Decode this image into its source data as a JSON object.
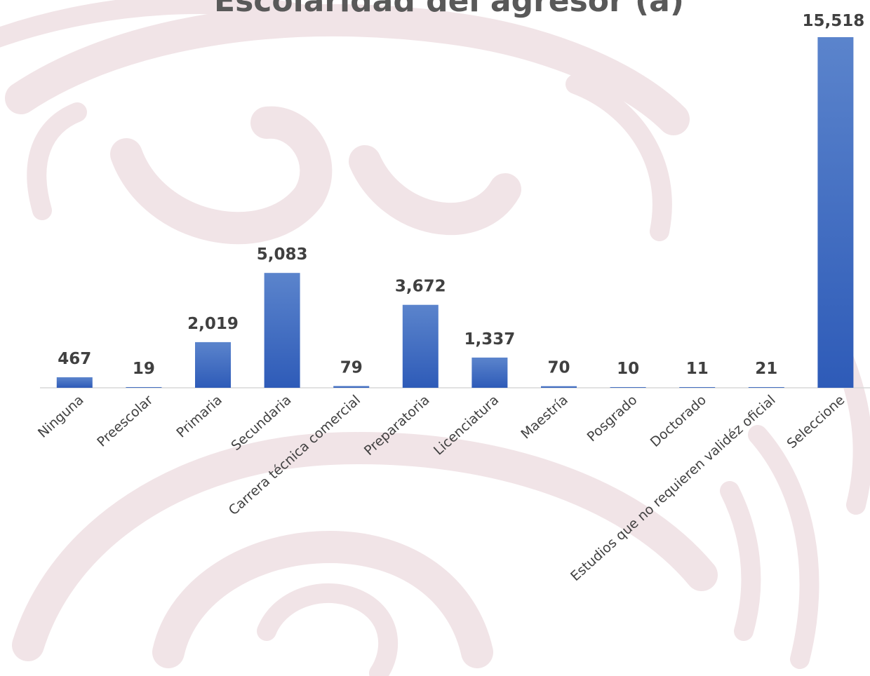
{
  "chart_data": {
    "type": "bar",
    "title": "Escolaridad del agresor (a)",
    "categories": [
      "Ninguna",
      "Preescolar",
      "Primaria",
      "Secundaria",
      "Carrera técnica comercial",
      "Preparatoria",
      "Licenciatura",
      "Maestría",
      "Posgrado",
      "Doctorado",
      "Estudios que no requieren validéz oficial",
      "Seleccione"
    ],
    "values": [
      467,
      19,
      2019,
      5083,
      79,
      3672,
      1337,
      70,
      10,
      11,
      21,
      15518
    ],
    "value_labels": [
      "467",
      "19",
      "2,019",
      "5,083",
      "79",
      "3,672",
      "1,337",
      "70",
      "10",
      "11",
      "21",
      "15,518"
    ],
    "ylim": [
      0,
      15518
    ],
    "grid": false,
    "legend": "none",
    "colors": {
      "bar_top": "#5b84cc",
      "bar_bottom": "#2e5bb8",
      "label": "#404040",
      "title": "#595959",
      "watermark": "#f1e4e7"
    }
  }
}
